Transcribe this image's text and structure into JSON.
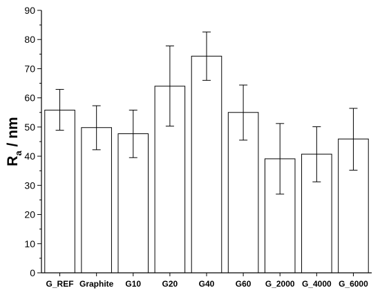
{
  "chart_data": {
    "type": "bar",
    "categories": [
      "G_REF",
      "Graphite",
      "G10",
      "G20",
      "G40",
      "G60",
      "G_2000",
      "G_4000",
      "G_6000"
    ],
    "series": [
      {
        "values": [
          55.8,
          49.8,
          47.7,
          64.0,
          74.3,
          55.0,
          39.1,
          40.7,
          45.9
        ],
        "error_low": [
          48.9,
          42.2,
          39.5,
          50.3,
          66.0,
          45.5,
          27.0,
          31.2,
          35.2
        ],
        "error_high": [
          62.9,
          57.3,
          55.8,
          77.8,
          82.6,
          64.4,
          51.2,
          50.1,
          56.4
        ]
      }
    ],
    "title": "",
    "xlabel": "",
    "ylabel": {
      "main": "R",
      "subscript": "a",
      "suffix": " / nm"
    },
    "ylim": [
      0,
      90
    ],
    "yticks": [
      "0",
      "10",
      "20",
      "30",
      "40",
      "50",
      "60",
      "70",
      "80",
      "90"
    ],
    "grid": false,
    "legend": "none",
    "colors": {
      "bar_fill": "#ffffff",
      "bar_stroke": "#000000",
      "axis": "#000000"
    }
  }
}
